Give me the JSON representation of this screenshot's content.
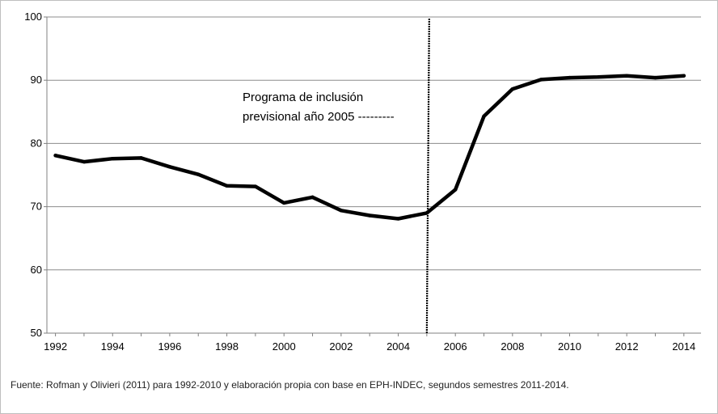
{
  "chart_data": {
    "type": "line",
    "x": [
      1992,
      1993,
      1994,
      1995,
      1996,
      1997,
      1998,
      1999,
      2000,
      2001,
      2002,
      2003,
      2004,
      2005,
      2006,
      2007,
      2008,
      2009,
      2010,
      2011,
      2012,
      2013,
      2014
    ],
    "series": [
      {
        "values": [
          78.1,
          77.1,
          77.6,
          77.7,
          76.3,
          75.1,
          73.3,
          73.2,
          70.6,
          71.5,
          69.4,
          68.6,
          68.1,
          69.0,
          72.7,
          84.3,
          88.6,
          90.1,
          90.4,
          90.5,
          90.7,
          90.4,
          90.7
        ]
      }
    ],
    "x_ticks": [
      "1992",
      "1994",
      "1996",
      "1998",
      "2000",
      "2002",
      "2004",
      "2006",
      "2008",
      "2010",
      "2012",
      "2014"
    ],
    "y_ticks": [
      "50",
      "60",
      "70",
      "80",
      "90",
      "100"
    ],
    "xlim": [
      1991.7,
      2014.6
    ],
    "ylim": [
      50,
      100
    ],
    "vertical_marker_x": 2005,
    "annotation": {
      "line1": "Programa de inclusión",
      "line2": "previsional año 2005 ---------"
    },
    "grid": "horizontal",
    "line_color": "#000000",
    "grid_color": "#8c8c8c",
    "title": "",
    "xlabel": "",
    "ylabel": ""
  },
  "source_note": "Fuente:  Rofman y Olivieri (2011) para 1992-2010 y elaboración propia con base en EPH-INDEC, segundos  semestres 2011-2014."
}
